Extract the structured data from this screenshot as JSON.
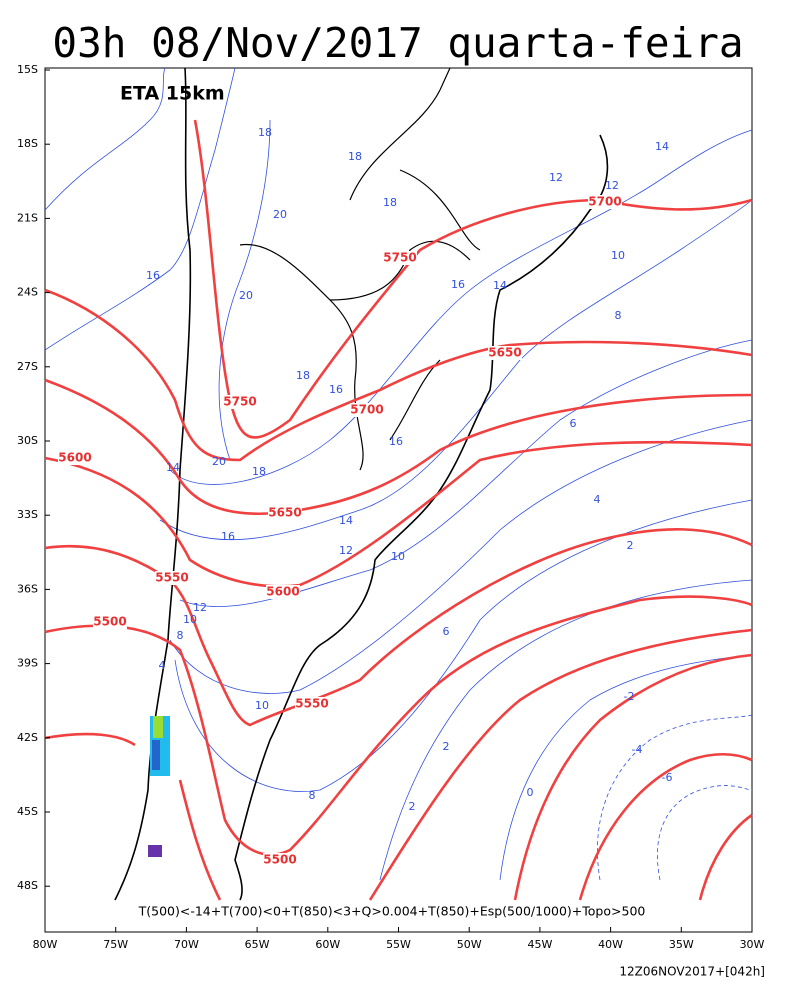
{
  "title": "03h 08/Nov/2017 quarta-feira",
  "model_label": "ETA 15km",
  "lat_labels": [
    "15S",
    "18S",
    "21S",
    "24S",
    "27S",
    "30S",
    "33S",
    "36S",
    "39S",
    "42S",
    "45S",
    "48S"
  ],
  "lon_labels": [
    "80W",
    "75W",
    "70W",
    "65W",
    "60W",
    "55W",
    "50W",
    "45W",
    "40W",
    "35W",
    "30W"
  ],
  "thickness_labels": [
    "5700",
    "5750",
    "5650",
    "5750",
    "5700",
    "5600",
    "5650",
    "5550",
    "5600",
    "5500",
    "5550",
    "5500"
  ],
  "temperature_labels": [
    "18",
    "18",
    "14",
    "12",
    "12",
    "18",
    "20",
    "16",
    "20",
    "10",
    "16",
    "14",
    "8",
    "18",
    "16",
    "6",
    "16",
    "14",
    "20",
    "18",
    "4",
    "14",
    "16",
    "12",
    "10",
    "2",
    "12",
    "10",
    "8",
    "6",
    "4",
    "-2",
    "10",
    "-4",
    "2",
    "-6",
    "0",
    "8",
    "2"
  ],
  "legend_text": "T(500)<-14+T(700)<0+T(850)<3+Q>0.004+T(850)+Esp(500/1000)+Topo>500",
  "footer": "12Z06NOV2017+[042h]"
}
